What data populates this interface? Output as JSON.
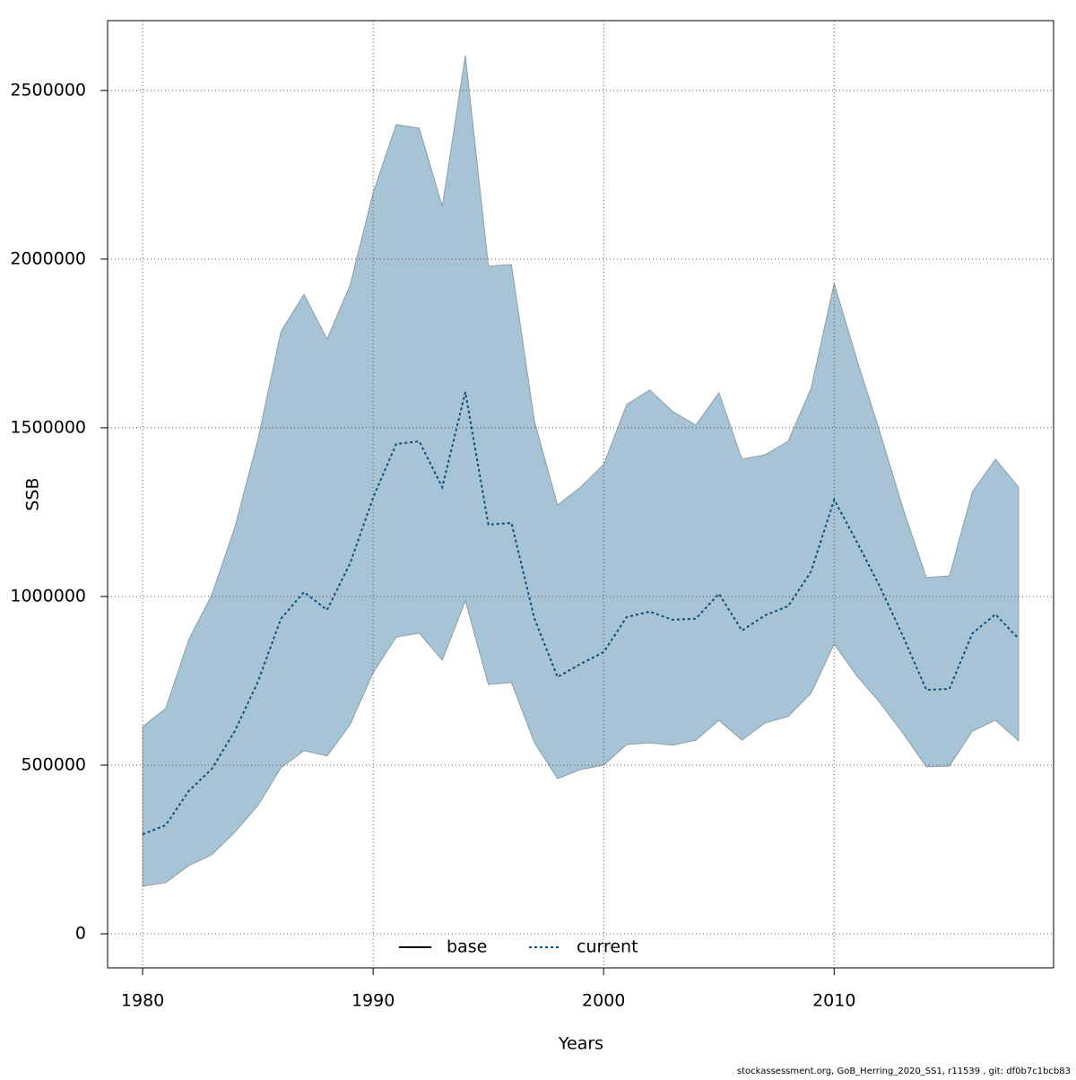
{
  "chart_data": {
    "type": "band-line",
    "xlabel": "Years",
    "ylabel": "SSB",
    "footer": "stockassessment.org, GoB_Herring_2020_SS1, r11539 , git: df0b7c1bcb83",
    "x": [
      1980,
      1981,
      1982,
      1983,
      1984,
      1985,
      1986,
      1987,
      1988,
      1989,
      1990,
      1991,
      1992,
      1993,
      1994,
      1995,
      1996,
      1997,
      1998,
      1999,
      2000,
      2001,
      2002,
      2003,
      2004,
      2005,
      2006,
      2007,
      2008,
      2009,
      2010,
      2011,
      2012,
      2013,
      2014,
      2015,
      2016,
      2017,
      2018
    ],
    "band": {
      "color": "#a6c4d5",
      "edge": "#8c9ea8",
      "upper": [
        614000,
        668000,
        872000,
        1005000,
        1205000,
        1465000,
        1785000,
        1896000,
        1763000,
        1923000,
        2197000,
        2399000,
        2388000,
        2157000,
        2604000,
        1979000,
        1984000,
        1519000,
        1271000,
        1324000,
        1391000,
        1569000,
        1612000,
        1548000,
        1508000,
        1604000,
        1407000,
        1420000,
        1460000,
        1617000,
        1928000,
        1699000,
        1484000,
        1258000,
        1056000,
        1061000,
        1311000,
        1407000,
        1324000
      ],
      "lower": [
        141000,
        152000,
        202000,
        234000,
        301000,
        380000,
        492000,
        543000,
        527000,
        620000,
        774000,
        880000,
        891000,
        811000,
        987000,
        739000,
        745000,
        566000,
        460000,
        487000,
        500000,
        561000,
        566000,
        559000,
        574000,
        633000,
        574000,
        625000,
        644000,
        713000,
        859000,
        763000,
        684000,
        593000,
        495000,
        497000,
        601000,
        633000,
        572000
      ]
    },
    "series": [
      {
        "name": "base",
        "color": "#000000",
        "dash": "solid",
        "values": null
      },
      {
        "name": "current",
        "color": "#0a4f7a",
        "dash": "dotted",
        "values": [
          295000,
          322000,
          423000,
          489000,
          601000,
          747000,
          934000,
          1013000,
          960000,
          1098000,
          1293000,
          1452000,
          1460000,
          1324000,
          1606000,
          1213000,
          1218000,
          934000,
          761000,
          800000,
          835000,
          939000,
          955000,
          931000,
          934000,
          1008000,
          899000,
          944000,
          971000,
          1074000,
          1287000,
          1160000,
          1027000,
          880000,
          723000,
          726000,
          891000,
          947000,
          875000
        ]
      }
    ],
    "xlim": [
      1978.48,
      2019.52
    ],
    "ylim": [
      -101000,
      2707000
    ],
    "xticks": [
      1980,
      1990,
      2000,
      2010
    ],
    "yticks": [
      0,
      500000,
      1000000,
      1500000,
      2000000,
      2500000
    ],
    "grid": true,
    "legend": "bottom"
  }
}
